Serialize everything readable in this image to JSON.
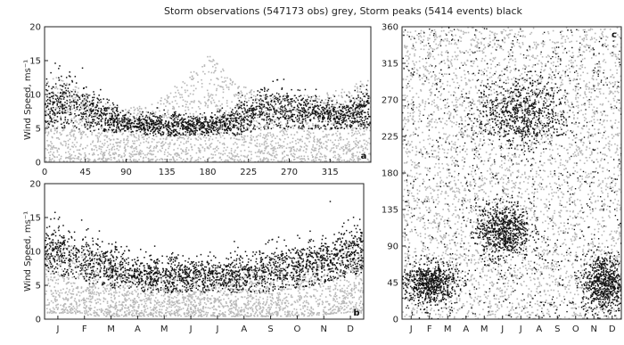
{
  "figure": {
    "title": "Storm observations (547173 obs) grey, Storm peaks (5414 events) black"
  },
  "colors": {
    "observations": "#b8b8b8",
    "peaks": "#111111",
    "axis": "#222222",
    "background": "#ffffff"
  },
  "chart_data": [
    {
      "type": "scatter",
      "panel_label": "a",
      "xlabel": "",
      "ylabel": "Wind Speed, ms⁻¹",
      "xlim": [
        0,
        360
      ],
      "ylim": [
        0,
        20
      ],
      "x_ticks": [
        0,
        45,
        90,
        135,
        180,
        225,
        270,
        315
      ],
      "x_ticklabels": [
        "0",
        "45",
        "90",
        "135",
        "180",
        "225",
        "270",
        "315"
      ],
      "y_ticks": [
        0,
        5,
        10,
        15,
        20
      ],
      "y_ticklabels": [
        "0",
        "5",
        "10",
        "15",
        "20"
      ],
      "series": [
        {
          "name": "Storm observations",
          "color": "#b8b8b8",
          "density_profile": {
            "x": [
              0,
              30,
              60,
              90,
              120,
              150,
              180,
              210,
              240,
              270,
              300,
              330,
              360
            ],
            "y_min": [
              0,
              0,
              0,
              0,
              0,
              0,
              0,
              0,
              0,
              0,
              0,
              0,
              0
            ],
            "y_max": [
              13,
              12,
              9,
              8,
              9,
              12,
              16,
              12,
              10,
              10,
              10,
              11,
              13
            ]
          }
        },
        {
          "name": "Storm peaks",
          "color": "#111111",
          "density_profile": {
            "x": [
              0,
              30,
              60,
              90,
              120,
              150,
              180,
              210,
              240,
              270,
              300,
              330,
              360
            ],
            "y_min": [
              5,
              5,
              4.5,
              4.5,
              4,
              4,
              4,
              4,
              5,
              5,
              5,
              5,
              5
            ],
            "y_max": [
              12,
              13,
              10,
              7,
              7,
              7,
              7,
              8,
              11,
              11,
              10,
              9,
              11
            ]
          }
        }
      ]
    },
    {
      "type": "scatter",
      "panel_label": "b",
      "xlabel": "",
      "ylabel": "Wind Speed, ms⁻¹",
      "xlim": [
        0,
        12
      ],
      "ylim": [
        0,
        20
      ],
      "x_ticks": [
        0.5,
        1.5,
        2.5,
        3.5,
        4.5,
        5.5,
        6.5,
        7.5,
        8.5,
        9.5,
        10.5,
        11.5
      ],
      "x_ticklabels": [
        "J",
        "F",
        "M",
        "A",
        "M",
        "J",
        "J",
        "A",
        "S",
        "O",
        "N",
        "D"
      ],
      "y_ticks": [
        0,
        5,
        10,
        15,
        20
      ],
      "y_ticklabels": [
        "0",
        "5",
        "10",
        "15",
        "20"
      ],
      "series": [
        {
          "name": "Storm observations",
          "color": "#b8b8b8",
          "density_profile": {
            "x": [
              0,
              1,
              2,
              3,
              4,
              5,
              6,
              7,
              8,
              9,
              10,
              11,
              12
            ],
            "y_min": [
              1,
              1,
              0.5,
              0.5,
              0.5,
              0.5,
              0.5,
              0.5,
              0.5,
              0.5,
              0.5,
              1,
              1
            ],
            "y_max": [
              12,
              11,
              10,
              8,
              7,
              7,
              7,
              7,
              8,
              9,
              10,
              11,
              12
            ]
          }
        },
        {
          "name": "Storm peaks",
          "color": "#111111",
          "density_profile": {
            "x": [
              0,
              1,
              2,
              3,
              4,
              5,
              6,
              7,
              8,
              9,
              10,
              11,
              12
            ],
            "y_min": [
              7,
              6,
              5,
              4.5,
              4,
              4,
              4,
              4,
              4,
              4.5,
              5,
              6,
              7
            ],
            "y_max": [
              14,
              13,
              12,
              10,
              9,
              9,
              9,
              9,
              10,
              11,
              12,
              13,
              14
            ]
          }
        }
      ]
    },
    {
      "type": "scatter",
      "panel_label": "c",
      "xlabel": "",
      "ylabel": "",
      "xlim": [
        0,
        12
      ],
      "ylim": [
        0,
        360
      ],
      "x_ticks": [
        0.5,
        1.5,
        2.5,
        3.5,
        4.5,
        5.5,
        6.5,
        7.5,
        8.5,
        9.5,
        10.5,
        11.5
      ],
      "x_ticklabels": [
        "J",
        "F",
        "M",
        "A",
        "M",
        "J",
        "J",
        "A",
        "S",
        "O",
        "N",
        "D"
      ],
      "y_ticks": [
        0,
        45,
        90,
        135,
        180,
        225,
        270,
        315,
        360
      ],
      "y_ticklabels": [
        "0",
        "45",
        "90",
        "135",
        "180",
        "225",
        "270",
        "315",
        "360"
      ],
      "series": [
        {
          "name": "Storm observations",
          "color": "#b8b8b8",
          "density_profile": {
            "x": [
              0,
              12
            ],
            "y_min": [
              0,
              0
            ],
            "y_max": [
              360,
              360
            ]
          }
        },
        {
          "name": "Storm peaks",
          "color": "#111111",
          "clusters": [
            {
              "x_center": 1.5,
              "y_center": 45,
              "x_spread": 1.5,
              "y_spread": 22
            },
            {
              "x_center": 6.5,
              "y_center": 255,
              "x_spread": 2.5,
              "y_spread": 35
            },
            {
              "x_center": 11.0,
              "y_center": 45,
              "x_spread": 1.2,
              "y_spread": 30
            },
            {
              "x_center": 5.5,
              "y_center": 110,
              "x_spread": 1.5,
              "y_spread": 30
            }
          ]
        }
      ]
    }
  ]
}
